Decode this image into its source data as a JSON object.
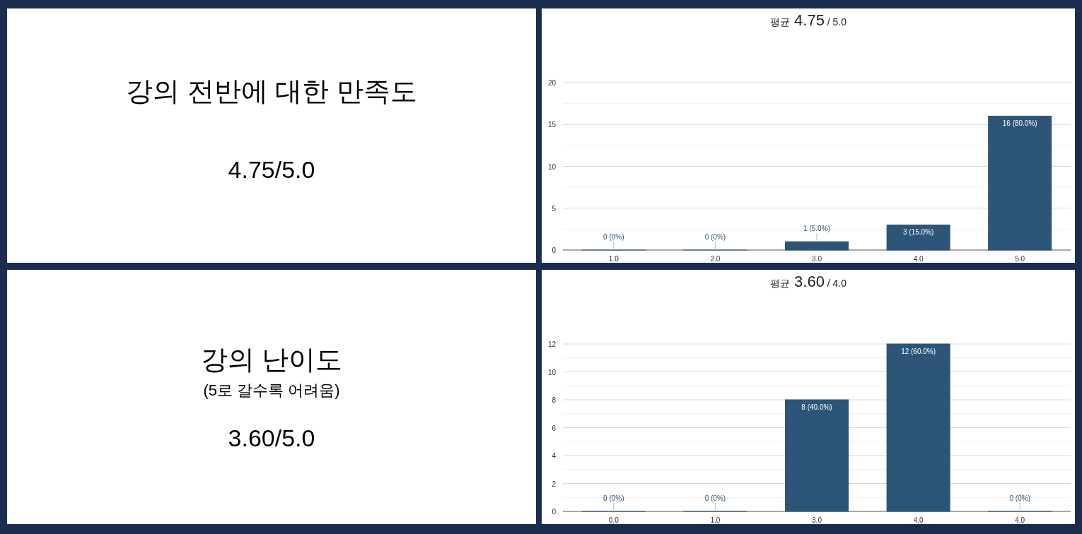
{
  "chart_data": [
    {
      "type": "other",
      "title": "강의 전반에 대한 만족도",
      "annotations": [
        "4.75/5.0"
      ]
    },
    {
      "type": "bar",
      "title": "평균 4.75 / 5.0",
      "categories": [
        "1.0",
        "2.0",
        "3.0",
        "4.0",
        "5.0"
      ],
      "values": [
        0,
        0,
        1,
        3,
        16
      ],
      "value_labels": [
        "0 (0%)",
        "0 (0%)",
        "1 (5.0%)",
        "3 (15.0%)",
        "16 (80.0%)"
      ],
      "color": "#2c5577",
      "ylim": [
        0,
        20
      ],
      "yticks": [
        0,
        5,
        10,
        15,
        20
      ],
      "grid": "y"
    },
    {
      "type": "other",
      "title": "강의 난이도",
      "subtitle": "(5로 갈수록 어려움)",
      "annotations": [
        "3.60/5.0"
      ]
    },
    {
      "type": "bar",
      "title": "평균 3.60 / 4.0",
      "categories": [
        "0.0",
        "1.0",
        "3.0",
        "4.0",
        "4.0"
      ],
      "values": [
        0,
        0,
        8,
        12,
        0
      ],
      "value_labels": [
        "0 (0%)",
        "0 (0%)",
        "8 (40.0%)",
        "12 (60.0%)",
        "0 (0%)"
      ],
      "color": "#2c5577",
      "ylim": [
        0,
        12
      ],
      "yticks": [
        0,
        2,
        4,
        6,
        8,
        10,
        12
      ],
      "grid": "y"
    }
  ]
}
